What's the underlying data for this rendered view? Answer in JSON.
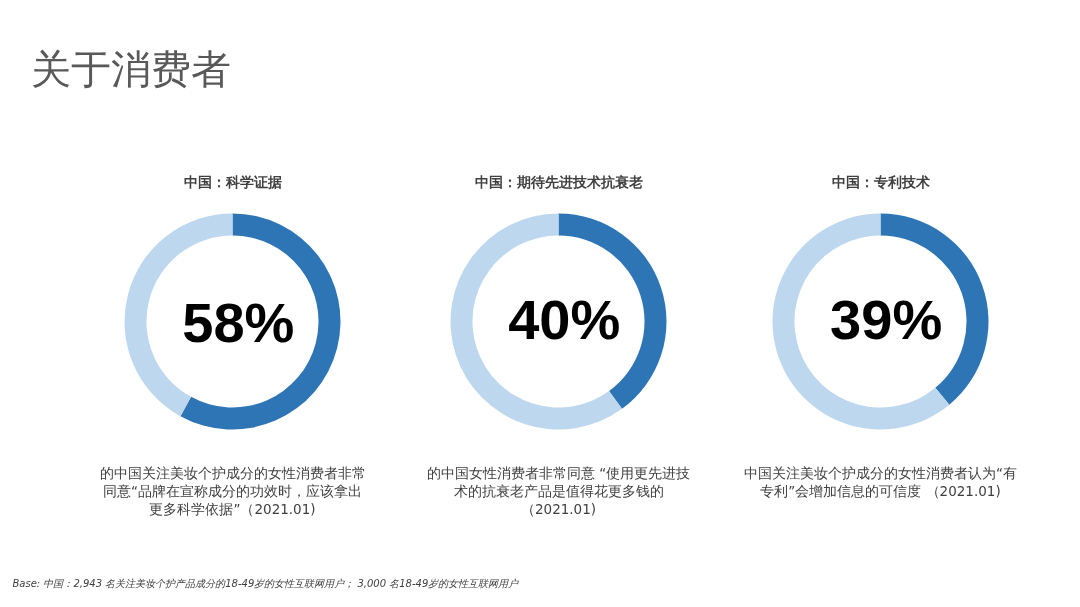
{
  "chart_data": [
    {
      "type": "donut",
      "title": "中国：科学证据",
      "categories": [
        null,
        null
      ],
      "values": [
        58,
        42
      ],
      "colors": [
        "#2e75b6",
        "#bdd7ee"
      ],
      "value_labels": [
        "58%",
        null
      ],
      "annotations": [
        "的中国关注美妆个护成分的女性消费者非常同意“品牌在宣称成分的功效时，应该拿出更多科学依据”（2021.01)",
        "关于消费者",
        "Base: 中国：2,943 名关注美妆个护产品成分的18-49岁的女性互联网用户； 3,000 名18-49岁的女性互联网用户"
      ]
    },
    {
      "type": "donut",
      "title": "中国：期待先进技术抗衰老",
      "categories": [
        null,
        null
      ],
      "values": [
        40,
        60
      ],
      "colors": [
        "#2e75b6",
        "#bdd7ee"
      ],
      "value_labels": [
        "40%",
        null
      ],
      "annotations": [
        "的中国女性消费者非常同意 “使用更先进技术的抗衰老产品是值得花更多钱的（2021.01)"
      ]
    },
    {
      "type": "donut",
      "title": "中国：专利技术",
      "categories": [
        null,
        null
      ],
      "values": [
        39,
        61
      ],
      "colors": [
        "#2e75b6",
        "#bdd7ee"
      ],
      "value_labels": [
        "39%",
        null
      ],
      "annotations": [
        "中国关注美妆个护成分的女性消费者认为“有专利”会增加信息的可信度 （2021.01)"
      ]
    }
  ]
}
